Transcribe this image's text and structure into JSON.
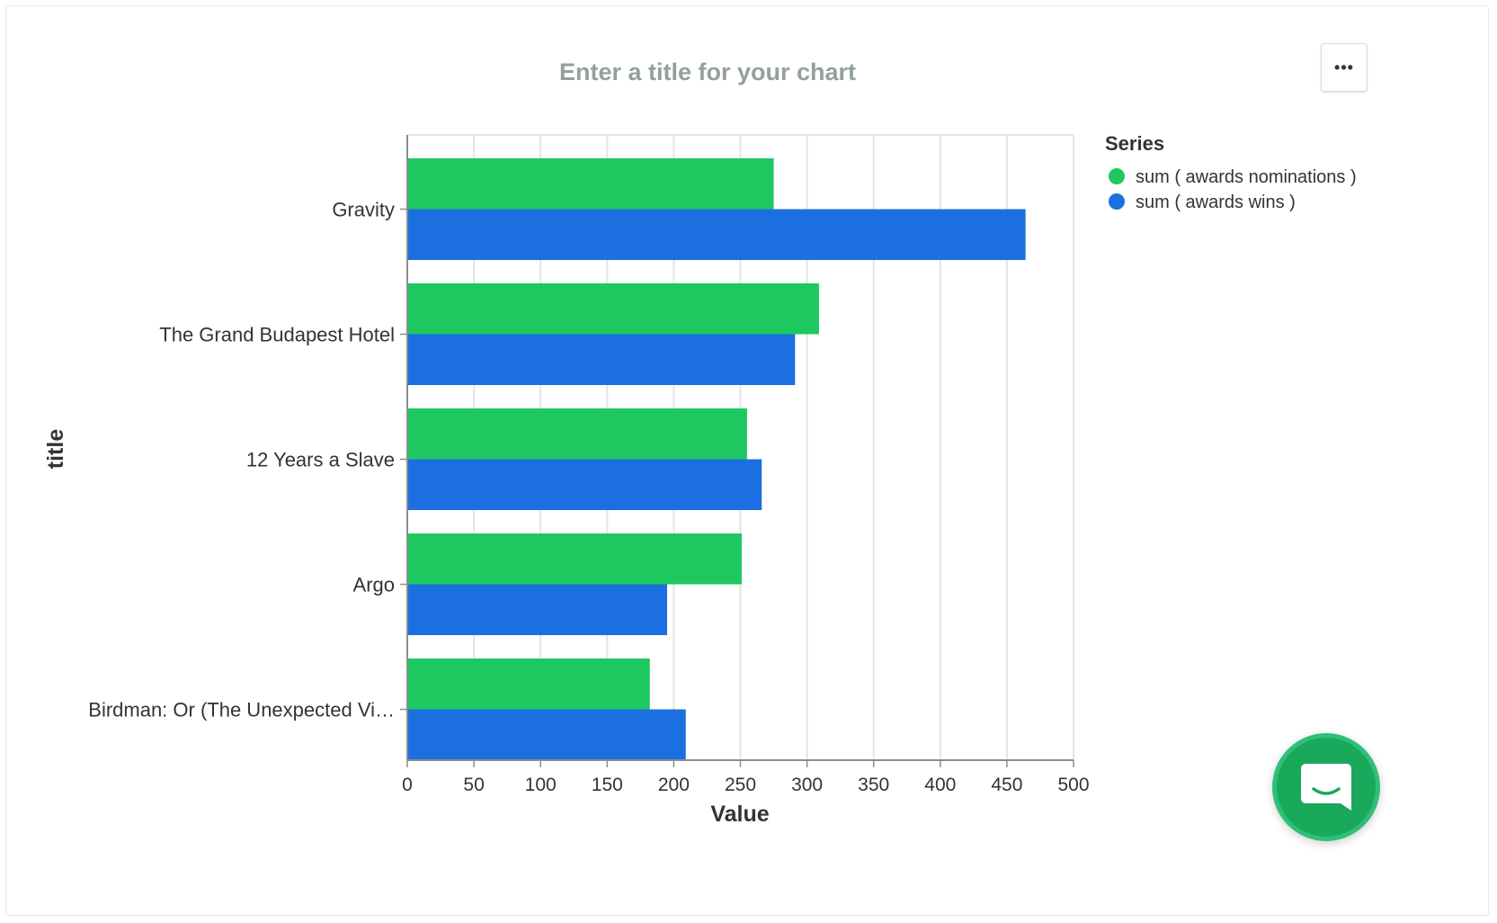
{
  "chart_header": {
    "title_placeholder": "Enter a title for your chart",
    "menu_label": "•••"
  },
  "legend": {
    "title": "Series"
  },
  "colors": {
    "nominations": "#1ec860",
    "wins": "#1c6fe0",
    "chat_button": "#1aa85a",
    "grid": "#e3e5e5",
    "axis": "#8a8f8f",
    "title_text": "#94a09e"
  },
  "icons": {
    "menu": "ellipsis-icon",
    "chat": "chat-bubble-icon"
  },
  "chart_data": {
    "type": "bar",
    "orientation": "horizontal",
    "categories": [
      "Gravity",
      "The Grand Budapest Hotel",
      "12 Years a Slave",
      "Argo",
      "Birdman: Or (The Unexpected Vi…"
    ],
    "series": [
      {
        "name": "sum ( awards nominations )",
        "values": [
          275,
          309,
          255,
          251,
          182
        ]
      },
      {
        "name": "sum ( awards wins )",
        "values": [
          464,
          291,
          266,
          195,
          209
        ]
      }
    ],
    "xlabel": "Value",
    "ylabel": "title",
    "xlim": [
      0,
      500
    ],
    "xticks": [
      0,
      50,
      100,
      150,
      200,
      250,
      300,
      350,
      400,
      450,
      500
    ],
    "grid": true,
    "legend_position": "right"
  }
}
